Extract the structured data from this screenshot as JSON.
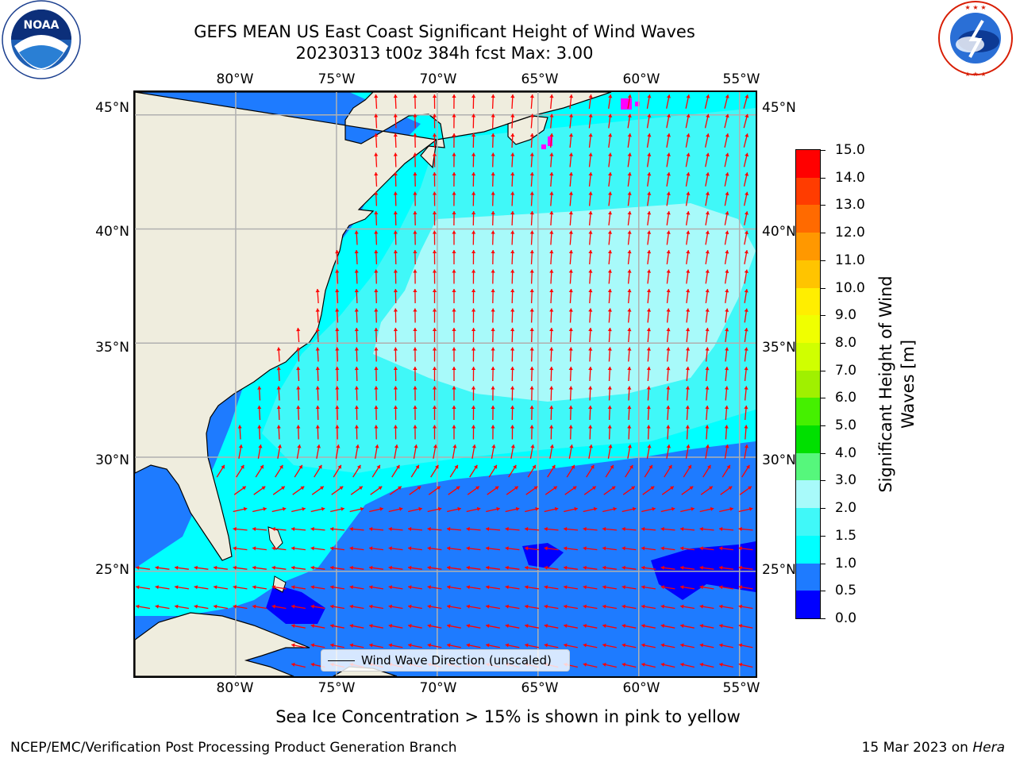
{
  "title": {
    "line1": "GEFS MEAN US East Coast Significant Height of Wind Waves",
    "line2": "20230313 t00z 384h fcst   Max: 3.00"
  },
  "logos": {
    "left": {
      "name": "NOAA",
      "ring_text": "NATIONAL OCEANIC AND ATMOSPHERIC ADMINISTRATION · U.S. DEPARTMENT OF COMMERCE"
    },
    "right": {
      "name": "National Weather Service",
      "ring_text": "NATIONAL WEATHER SERVICE"
    }
  },
  "map": {
    "lon_labels": [
      "80°W",
      "75°W",
      "70°W",
      "65°W",
      "60°W",
      "55°W"
    ],
    "lat_labels": [
      "45°N",
      "40°N",
      "35°N",
      "30°N",
      "25°N"
    ],
    "lon_range": [
      -85,
      -54.2
    ],
    "lat_range": [
      20.4,
      46
    ],
    "grid": true,
    "land_color": "#efedde",
    "arrow_color": "#ff0000",
    "legend_label": "Wind Wave Direction (unscaled)"
  },
  "colorbar": {
    "title": "Significant Height of Wind Waves [m]",
    "title_line1": "Significant Height of Wind",
    "title_line2": "Waves [m]",
    "ticks": [
      "0.0",
      "0.5",
      "1.0",
      "1.5",
      "2.0",
      "3.0",
      "4.0",
      "5.0",
      "6.0",
      "7.0",
      "8.0",
      "9.0",
      "10.0",
      "11.0",
      "12.0",
      "13.0",
      "14.0",
      "15.0"
    ],
    "colors": [
      "#0000ff",
      "#1e7bff",
      "#00ffff",
      "#40f8f8",
      "#a8fafa",
      "#56f77c",
      "#00e000",
      "#45f000",
      "#a0f000",
      "#d0ff00",
      "#f0ff00",
      "#ffee00",
      "#ffc400",
      "#ff9800",
      "#ff6a00",
      "#ff3c00",
      "#ff0000"
    ]
  },
  "footer": {
    "note": "Sea Ice Concentration > 15% is shown in pink to yellow",
    "left": "NCEP/EMC/Verification Post Processing Product Generation Branch",
    "right_prefix": "15 Mar 2023 on ",
    "right_host": "Hera"
  }
}
